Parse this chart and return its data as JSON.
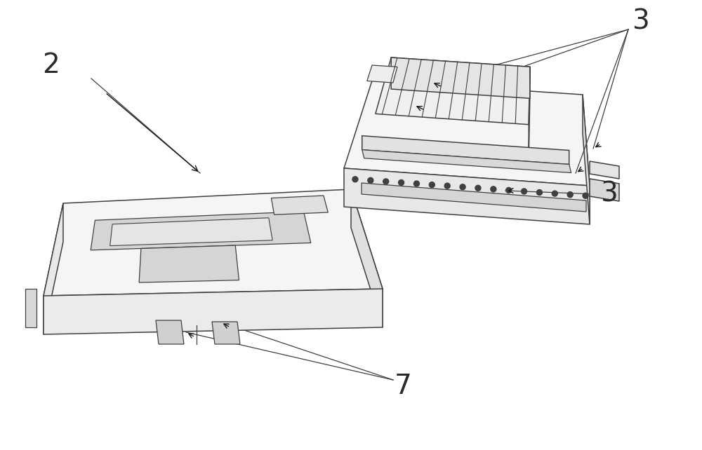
{
  "bg_color": "#ffffff",
  "line_color": "#404040",
  "line_width": 1.1,
  "arrow_color": "#1a1a1a",
  "label_color": "#2a2a2a",
  "label_fontsize": 28,
  "figsize": [
    10,
    6.42
  ]
}
